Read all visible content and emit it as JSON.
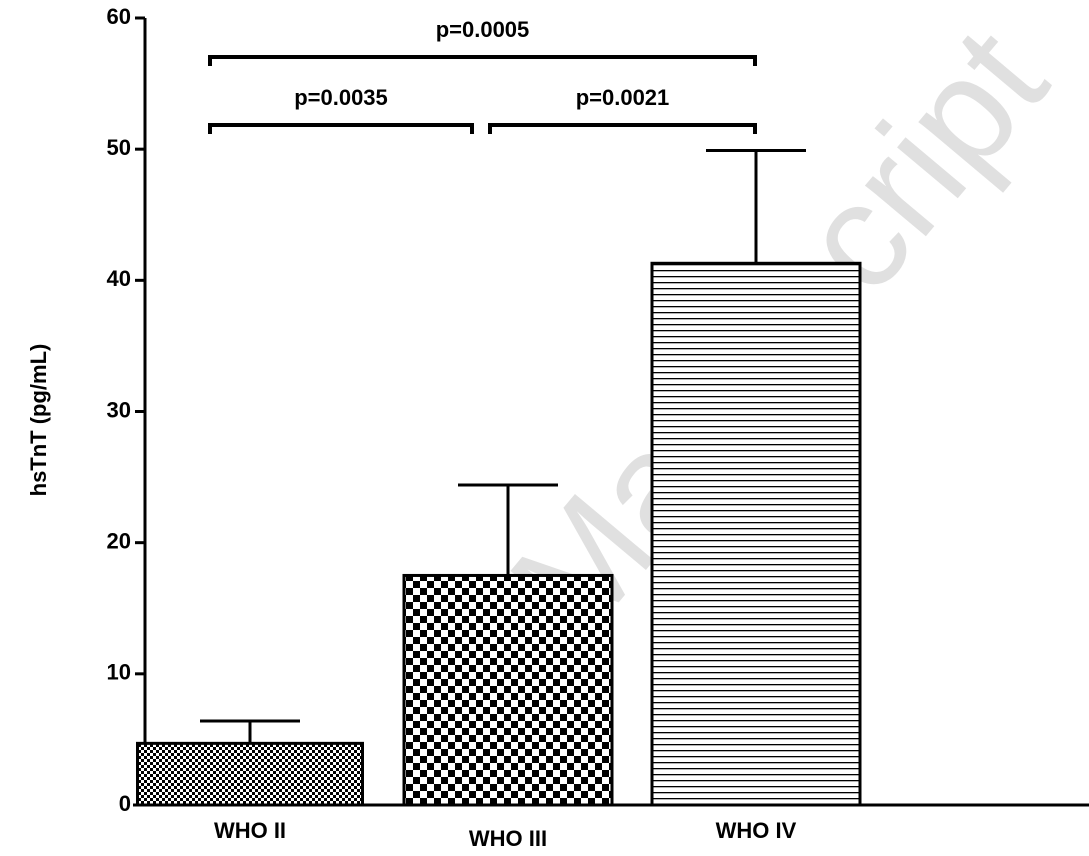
{
  "chart_data": {
    "type": "bar",
    "y_label": "hsTnT (pg/mL)",
    "categories": [
      "WHO II",
      "WHO III",
      "WHO IV"
    ],
    "series": [
      {
        "values": [
          4.7,
          17.5,
          41.3
        ],
        "errors": [
          1.7,
          6.9,
          8.6
        ]
      }
    ],
    "ylim": [
      0,
      60
    ],
    "yticks": [
      0,
      10,
      20,
      30,
      40,
      50,
      60
    ],
    "annotations": [
      "p=0.0035",
      "p=0.0021",
      "p=0.0005"
    ],
    "watermark": "ed Manuscript"
  }
}
